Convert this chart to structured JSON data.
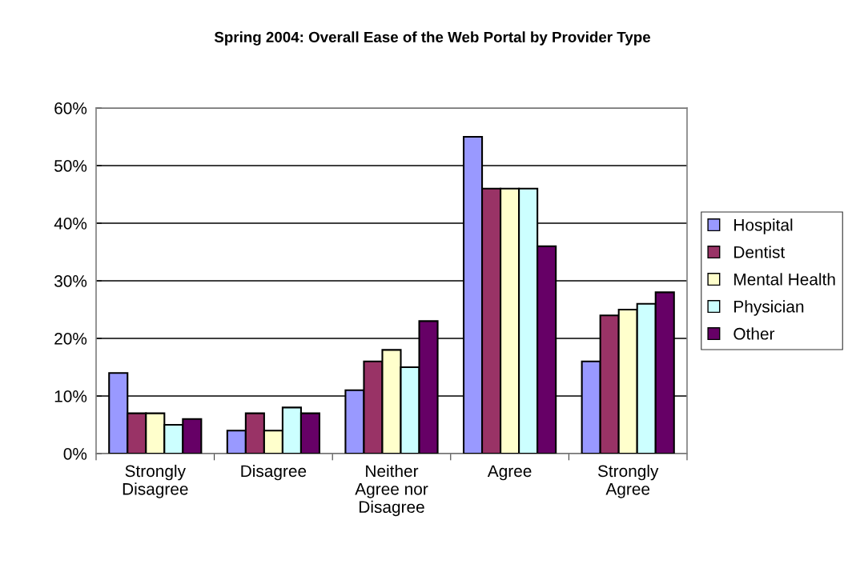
{
  "chart_data": {
    "type": "bar",
    "title": "Spring 2004: Overall Ease of the Web Portal by Provider Type",
    "categories": [
      "Strongly\nDisagree",
      "Disagree",
      "Neither\nAgree nor\nDisagree",
      "Agree",
      "Strongly\nAgree"
    ],
    "series": [
      {
        "name": "Hospital",
        "color": "#9999ff",
        "values": [
          14,
          4,
          11,
          55,
          16
        ]
      },
      {
        "name": "Dentist",
        "color": "#993366",
        "values": [
          7,
          7,
          16,
          46,
          24
        ]
      },
      {
        "name": "Mental Health",
        "color": "#ffffcc",
        "values": [
          7,
          4,
          18,
          46,
          25
        ]
      },
      {
        "name": "Physician",
        "color": "#ccffff",
        "values": [
          5,
          8,
          15,
          46,
          26
        ]
      },
      {
        "name": "Other",
        "color": "#660066",
        "values": [
          6,
          7,
          23,
          36,
          28
        ]
      }
    ],
    "ylim": [
      0,
      60
    ],
    "yticks": [
      {
        "value": 0,
        "label": "0%"
      },
      {
        "value": 10,
        "label": "10%"
      },
      {
        "value": 20,
        "label": "20%"
      },
      {
        "value": 30,
        "label": "30%"
      },
      {
        "value": 40,
        "label": "40%"
      },
      {
        "value": 50,
        "label": "50%"
      },
      {
        "value": 60,
        "label": "60%"
      }
    ],
    "grid": "y",
    "legend": "right"
  }
}
